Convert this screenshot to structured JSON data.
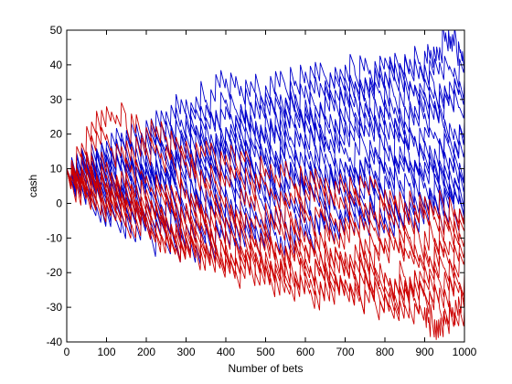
{
  "chart_data": {
    "type": "line",
    "title": "",
    "xlabel": "Number of bets",
    "ylabel": "cash",
    "xlim": [
      0,
      1000
    ],
    "ylim": [
      -40,
      50
    ],
    "xticks": [
      0,
      100,
      200,
      300,
      400,
      500,
      600,
      700,
      800,
      900,
      1000
    ],
    "yticks": [
      -40,
      -30,
      -20,
      -10,
      0,
      10,
      20,
      30,
      40,
      50
    ],
    "grid": false,
    "legend": "none",
    "colors": {
      "positive_final": "#0000cc",
      "negative_final": "#cc0000"
    },
    "series": [
      {
        "color": "#0000cc",
        "x": [
          0,
          100,
          200,
          300,
          400,
          500,
          600,
          700,
          800,
          900,
          960,
          1000
        ],
        "y": [
          10,
          14,
          22,
          26,
          28,
          30,
          34,
          36,
          38,
          44,
          50,
          46
        ]
      },
      {
        "color": "#0000cc",
        "x": [
          0,
          100,
          200,
          300,
          400,
          500,
          600,
          700,
          800,
          900,
          1000
        ],
        "y": [
          10,
          18,
          24,
          30,
          36,
          34,
          38,
          40,
          42,
          40,
          42
        ]
      },
      {
        "color": "#0000cc",
        "x": [
          0,
          100,
          200,
          300,
          400,
          500,
          600,
          700,
          800,
          900,
          1000
        ],
        "y": [
          10,
          16,
          20,
          24,
          30,
          32,
          28,
          34,
          38,
          36,
          36
        ]
      },
      {
        "color": "#0000cc",
        "x": [
          0,
          100,
          200,
          300,
          400,
          500,
          600,
          700,
          800,
          900,
          1000
        ],
        "y": [
          10,
          12,
          16,
          20,
          22,
          26,
          30,
          32,
          34,
          30,
          34
        ]
      },
      {
        "color": "#0000cc",
        "x": [
          0,
          100,
          200,
          300,
          400,
          500,
          600,
          700,
          800,
          900,
          1000
        ],
        "y": [
          10,
          14,
          12,
          18,
          22,
          20,
          24,
          28,
          30,
          32,
          30
        ]
      },
      {
        "color": "#0000cc",
        "x": [
          0,
          100,
          200,
          300,
          400,
          500,
          600,
          700,
          800,
          900,
          1000
        ],
        "y": [
          10,
          8,
          14,
          16,
          18,
          22,
          26,
          24,
          28,
          26,
          24
        ]
      },
      {
        "color": "#0000cc",
        "x": [
          0,
          100,
          200,
          300,
          400,
          500,
          600,
          700,
          800,
          900,
          1000
        ],
        "y": [
          10,
          12,
          10,
          14,
          18,
          16,
          20,
          22,
          24,
          22,
          20
        ]
      },
      {
        "color": "#0000cc",
        "x": [
          0,
          100,
          200,
          300,
          400,
          500,
          600,
          700,
          800,
          900,
          1000
        ],
        "y": [
          10,
          6,
          10,
          12,
          16,
          14,
          18,
          16,
          20,
          18,
          16
        ]
      },
      {
        "color": "#0000cc",
        "x": [
          0,
          100,
          200,
          300,
          400,
          500,
          600,
          700,
          800,
          900,
          1000
        ],
        "y": [
          10,
          10,
          6,
          10,
          12,
          10,
          14,
          12,
          16,
          14,
          14
        ]
      },
      {
        "color": "#0000cc",
        "x": [
          0,
          100,
          200,
          300,
          400,
          500,
          600,
          700,
          800,
          900,
          1000
        ],
        "y": [
          10,
          4,
          8,
          6,
          10,
          12,
          8,
          12,
          10,
          12,
          12
        ]
      },
      {
        "color": "#0000cc",
        "x": [
          0,
          100,
          200,
          300,
          400,
          500,
          600,
          700,
          800,
          900,
          1000
        ],
        "y": [
          10,
          2,
          0,
          4,
          8,
          6,
          10,
          8,
          12,
          10,
          8
        ]
      },
      {
        "color": "#0000cc",
        "x": [
          0,
          100,
          200,
          300,
          400,
          500,
          600,
          700,
          800,
          900,
          1000
        ],
        "y": [
          10,
          6,
          2,
          0,
          4,
          2,
          6,
          4,
          8,
          6,
          6
        ]
      },
      {
        "color": "#0000cc",
        "x": [
          0,
          100,
          200,
          300,
          400,
          500,
          600,
          700,
          800,
          900,
          1000
        ],
        "y": [
          10,
          0,
          -4,
          -2,
          0,
          -2,
          2,
          0,
          4,
          2,
          4
        ]
      },
      {
        "color": "#0000cc",
        "x": [
          0,
          100,
          200,
          300,
          400,
          500,
          600,
          700,
          800,
          900,
          1000
        ],
        "y": [
          10,
          4,
          -2,
          -6,
          -4,
          -8,
          -4,
          -2,
          0,
          2,
          2
        ]
      },
      {
        "color": "#0000cc",
        "x": [
          0,
          100,
          200,
          300,
          400,
          500,
          600,
          700,
          800,
          900,
          1000
        ],
        "y": [
          10,
          -2,
          -6,
          -10,
          -8,
          -4,
          -6,
          -2,
          -4,
          0,
          1
        ]
      },
      {
        "color": "#cc0000",
        "x": [
          0,
          100,
          200,
          300,
          400,
          500,
          600,
          700,
          800,
          900,
          1000
        ],
        "y": [
          10,
          28,
          22,
          18,
          14,
          10,
          8,
          6,
          4,
          2,
          -2
        ]
      },
      {
        "color": "#cc0000",
        "x": [
          0,
          100,
          200,
          300,
          400,
          500,
          600,
          700,
          800,
          900,
          1000
        ],
        "y": [
          10,
          20,
          16,
          12,
          8,
          6,
          4,
          2,
          0,
          -2,
          -4
        ]
      },
      {
        "color": "#cc0000",
        "x": [
          0,
          100,
          200,
          300,
          400,
          500,
          600,
          700,
          800,
          900,
          1000
        ],
        "y": [
          10,
          12,
          8,
          4,
          2,
          0,
          -2,
          -4,
          -6,
          -8,
          -7
        ]
      },
      {
        "color": "#cc0000",
        "x": [
          0,
          100,
          200,
          300,
          400,
          500,
          600,
          700,
          800,
          900,
          1000
        ],
        "y": [
          10,
          6,
          2,
          -2,
          -4,
          -6,
          -8,
          -6,
          -10,
          -12,
          -10
        ]
      },
      {
        "color": "#cc0000",
        "x": [
          0,
          100,
          200,
          300,
          400,
          500,
          600,
          700,
          800,
          900,
          1000
        ],
        "y": [
          10,
          2,
          -2,
          -6,
          -8,
          -10,
          -12,
          -14,
          -12,
          -14,
          -13
        ]
      },
      {
        "color": "#cc0000",
        "x": [
          0,
          100,
          200,
          300,
          400,
          500,
          600,
          700,
          800,
          900,
          1000
        ],
        "y": [
          10,
          4,
          -4,
          -10,
          -12,
          -14,
          -16,
          -18,
          -20,
          -18,
          -16
        ]
      },
      {
        "color": "#cc0000",
        "x": [
          0,
          100,
          200,
          300,
          400,
          500,
          600,
          700,
          800,
          900,
          1000
        ],
        "y": [
          10,
          0,
          -6,
          -12,
          -16,
          -18,
          -20,
          -22,
          -24,
          -22,
          -20
        ]
      },
      {
        "color": "#cc0000",
        "x": [
          0,
          100,
          200,
          300,
          400,
          500,
          600,
          700,
          800,
          900,
          1000
        ],
        "y": [
          10,
          6,
          0,
          -8,
          -14,
          -16,
          -18,
          -22,
          -26,
          -26,
          -24
        ]
      },
      {
        "color": "#cc0000",
        "x": [
          0,
          100,
          200,
          300,
          400,
          500,
          600,
          700,
          800,
          900,
          940,
          1000
        ],
        "y": [
          10,
          2,
          -4,
          -10,
          -14,
          -18,
          -22,
          -24,
          -26,
          -30,
          -33,
          -27
        ]
      },
      {
        "color": "#cc0000",
        "x": [
          0,
          100,
          200,
          300,
          400,
          500,
          600,
          700,
          800,
          900,
          1000
        ],
        "y": [
          10,
          8,
          4,
          0,
          -4,
          -8,
          -12,
          -16,
          -20,
          -26,
          -30
        ]
      }
    ]
  }
}
